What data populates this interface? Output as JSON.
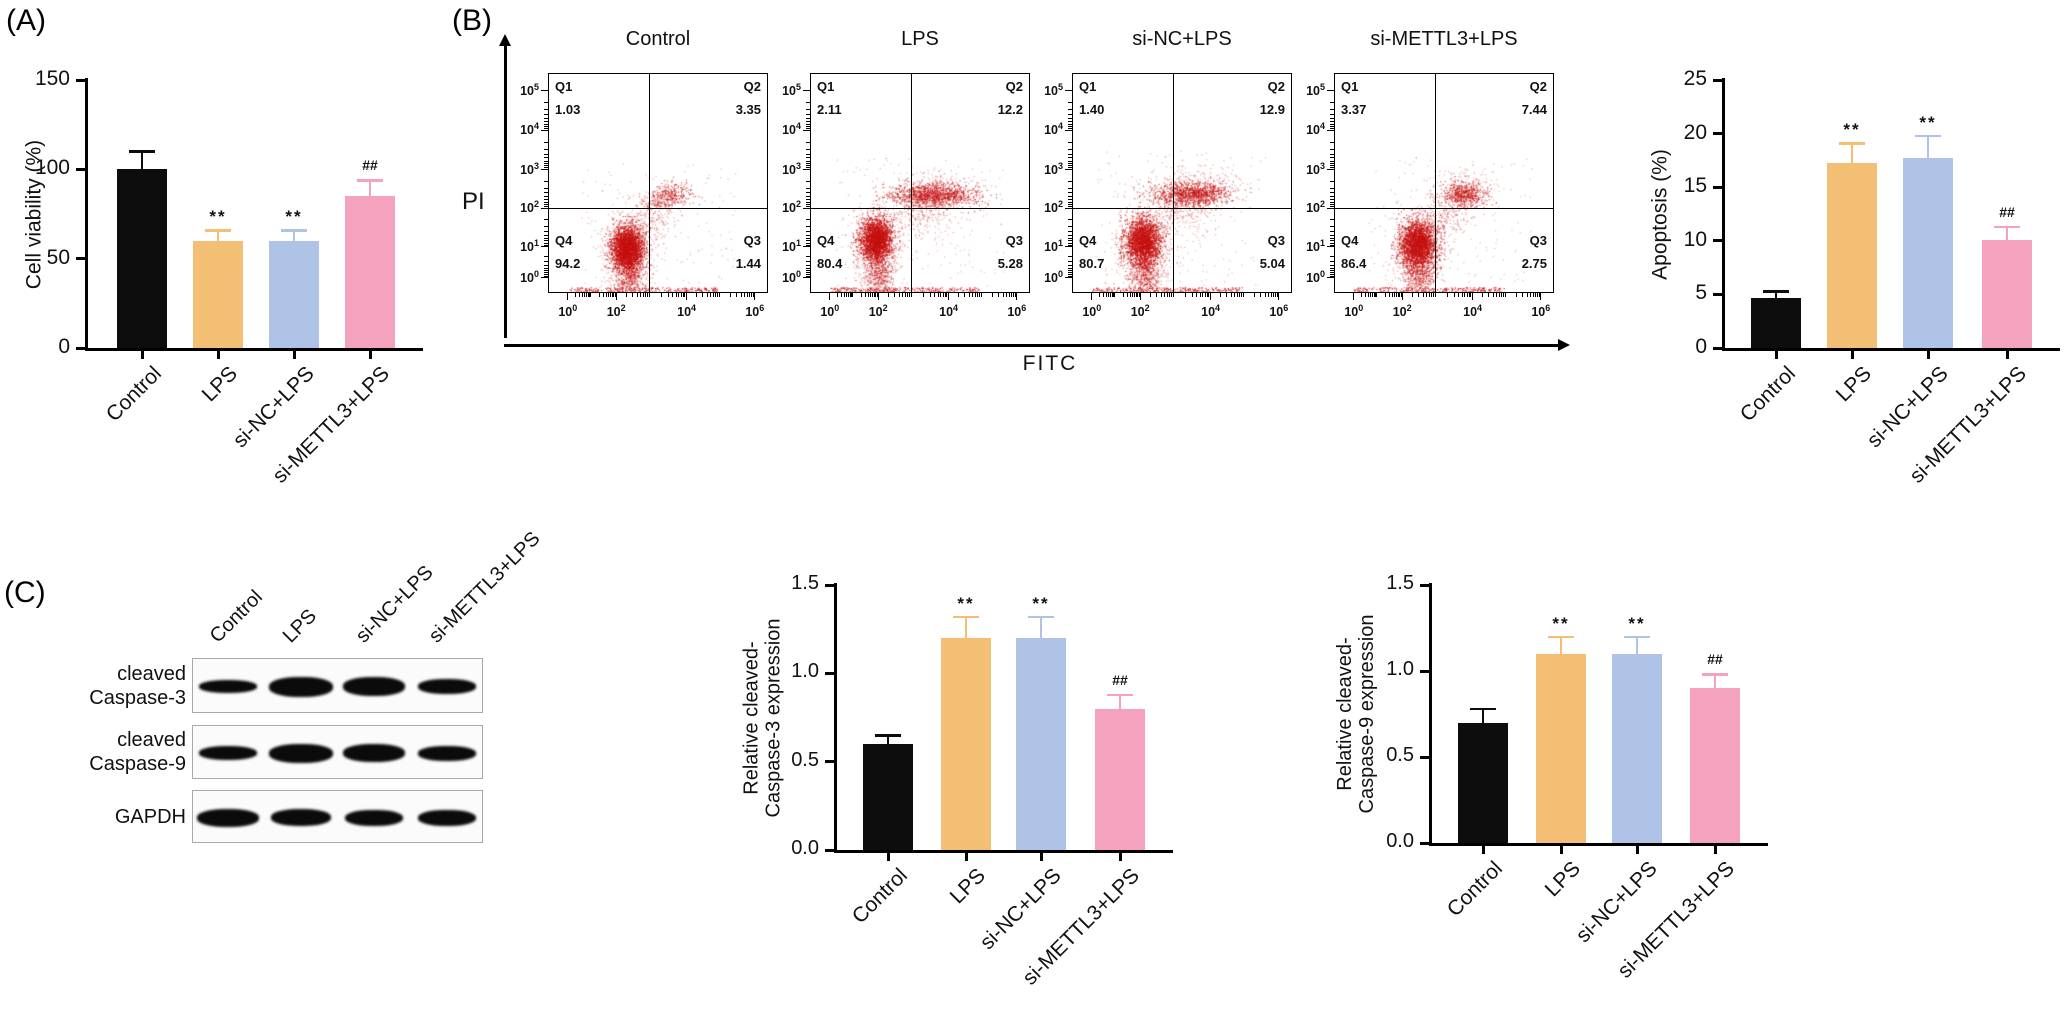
{
  "figure": {
    "panel_a_label": "(A)",
    "panel_b_label": "(B)",
    "panel_c_label": "(C)"
  },
  "colors": {
    "black_bar": "#0d0d0d",
    "orange_bar": "#f2bf74",
    "blue_bar": "#aec3e6",
    "pink_bar": "#f5a2be",
    "flow_dots": "#c51212",
    "axis": "#000000"
  },
  "panel_b": {
    "y_axis_label": "PI",
    "x_axis_label": "FITC",
    "tick_base": "10",
    "y_tick_exponents": [
      5,
      4,
      3,
      2,
      1,
      0
    ],
    "x_tick_exponents": [
      0,
      2,
      4,
      6
    ],
    "flow_plots": [
      {
        "title": "Control",
        "Q1": "1.03",
        "Q2": "3.35",
        "Q3": "1.44",
        "Q4": "94.2"
      },
      {
        "title": "LPS",
        "Q1": "2.11",
        "Q2": "12.2",
        "Q3": "5.28",
        "Q4": "80.4"
      },
      {
        "title": "si-NC+LPS",
        "Q1": "1.40",
        "Q2": "12.9",
        "Q3": "5.04",
        "Q4": "80.7"
      },
      {
        "title": "si-METTL3+LPS",
        "Q1": "3.37",
        "Q2": "7.44",
        "Q3": "2.75",
        "Q4": "86.4"
      }
    ]
  },
  "panel_c": {
    "lane_labels": [
      "Control",
      "LPS",
      "si-NC+LPS",
      "si-METTL3+LPS"
    ],
    "blot_rows": [
      {
        "label_lines": [
          "cleaved",
          "Caspase-3"
        ]
      },
      {
        "label_lines": [
          "cleaved",
          "Caspase-9"
        ]
      },
      {
        "label_lines": [
          "GAPDH"
        ]
      }
    ]
  },
  "chart_data": [
    {
      "id": "cell_viability",
      "type": "bar",
      "ylabel_lines": [
        "Cell viability (%)"
      ],
      "categories": [
        "Control",
        "LPS",
        "si-NC+LPS",
        "si-METTL3+LPS"
      ],
      "values": [
        100,
        60,
        60,
        85
      ],
      "errors": [
        10,
        6,
        6,
        9
      ],
      "significance": [
        "",
        "**",
        "**",
        "##"
      ],
      "bar_colors": [
        "#0d0d0d",
        "#f2bf74",
        "#aec3e6",
        "#f5a2be"
      ],
      "ylim": [
        0,
        150
      ],
      "yticks": [
        0,
        50,
        100,
        150
      ],
      "ytick_labels": [
        "0",
        "50",
        "100",
        "150"
      ]
    },
    {
      "id": "apoptosis",
      "type": "bar",
      "ylabel_lines": [
        "Apoptosis (%)"
      ],
      "categories": [
        "Control",
        "LPS",
        "si-NC+LPS",
        "si-METTL3+LPS"
      ],
      "values": [
        4.7,
        17.3,
        17.7,
        10.1
      ],
      "errors": [
        0.6,
        1.8,
        2.1,
        1.2
      ],
      "significance": [
        "",
        "**",
        "**",
        "##"
      ],
      "bar_colors": [
        "#0d0d0d",
        "#f2bf74",
        "#aec3e6",
        "#f5a2be"
      ],
      "ylim": [
        0,
        25
      ],
      "yticks": [
        0,
        5,
        10,
        15,
        20,
        25
      ],
      "ytick_labels": [
        "0",
        "5",
        "10",
        "15",
        "20",
        "25"
      ]
    },
    {
      "id": "relative_cleaved_caspase3",
      "type": "bar",
      "ylabel_lines": [
        "Relative cleaved-",
        "Caspase-3 expression"
      ],
      "categories": [
        "Control",
        "LPS",
        "si-NC+LPS",
        "si-METTL3+LPS"
      ],
      "values": [
        0.6,
        1.2,
        1.2,
        0.8
      ],
      "errors": [
        0.05,
        0.12,
        0.12,
        0.08
      ],
      "significance": [
        "",
        "**",
        "**",
        "##"
      ],
      "bar_colors": [
        "#0d0d0d",
        "#f2bf74",
        "#aec3e6",
        "#f5a2be"
      ],
      "ylim": [
        0,
        1.5
      ],
      "yticks": [
        0,
        0.5,
        1,
        1.5
      ],
      "ytick_labels": [
        "0.0",
        "0.5",
        "1.0",
        "1.5"
      ]
    },
    {
      "id": "relative_cleaved_caspase9",
      "type": "bar",
      "ylabel_lines": [
        "Relative cleaved-",
        "Caspase-9 expression"
      ],
      "categories": [
        "Control",
        "LPS",
        "si-NC+LPS",
        "si-METTL3+LPS"
      ],
      "values": [
        0.7,
        1.1,
        1.1,
        0.9
      ],
      "errors": [
        0.08,
        0.1,
        0.1,
        0.08
      ],
      "significance": [
        "",
        "**",
        "**",
        "##"
      ],
      "bar_colors": [
        "#0d0d0d",
        "#f2bf74",
        "#aec3e6",
        "#f5a2be"
      ],
      "ylim": [
        0,
        1.5
      ],
      "yticks": [
        0,
        0.5,
        1,
        1.5
      ],
      "ytick_labels": [
        "0.0",
        "0.5",
        "1.0",
        "1.5"
      ]
    }
  ]
}
